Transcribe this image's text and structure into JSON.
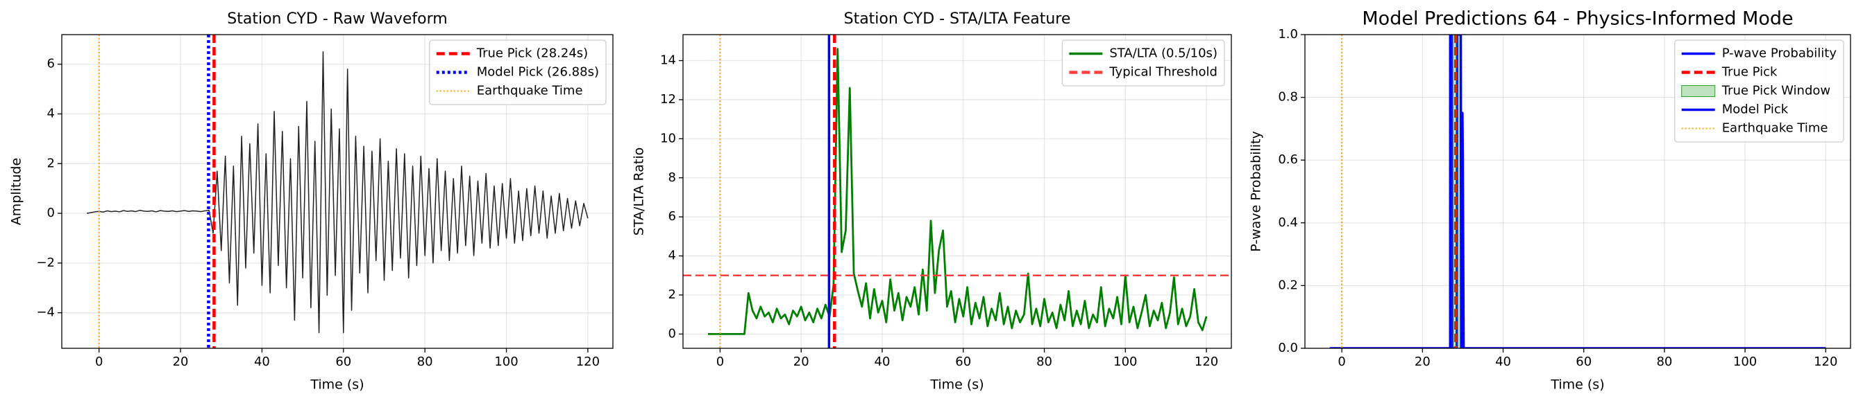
{
  "chart_data": [
    {
      "type": "line",
      "title": "Station CYD - Raw Waveform",
      "xlabel": "Time (s)",
      "ylabel": "Amplitude",
      "xlim": [
        -9.15,
        126.15
      ],
      "ylim": [
        -5.43,
        7.19
      ],
      "xticks": [
        0,
        20,
        40,
        60,
        80,
        100,
        120
      ],
      "yticks": [
        {
          "value": -4,
          "label": "−4"
        },
        {
          "value": -2,
          "label": "−2"
        },
        0,
        2,
        4,
        6
      ],
      "grid": true,
      "legend": "upper right",
      "x": [
        -3,
        -2,
        -1,
        0,
        1,
        2,
        3,
        4,
        5,
        6,
        7,
        8,
        9,
        10,
        11,
        12,
        13,
        14,
        15,
        16,
        17,
        18,
        19,
        20,
        21,
        22,
        23,
        24,
        25,
        26,
        27,
        28,
        29,
        30,
        31,
        32,
        33,
        34,
        35,
        36,
        37,
        38,
        39,
        40,
        41,
        42,
        43,
        44,
        45,
        46,
        47,
        48,
        49,
        50,
        51,
        52,
        53,
        54,
        55,
        56,
        57,
        58,
        59,
        60,
        61,
        62,
        63,
        64,
        65,
        66,
        67,
        68,
        69,
        70,
        71,
        72,
        73,
        74,
        75,
        76,
        77,
        78,
        79,
        80,
        81,
        82,
        83,
        84,
        85,
        86,
        87,
        88,
        89,
        90,
        91,
        92,
        93,
        94,
        95,
        96,
        97,
        98,
        99,
        100,
        101,
        102,
        103,
        104,
        105,
        106,
        107,
        108,
        109,
        110,
        111,
        112,
        113,
        114,
        115,
        116,
        117,
        118,
        119,
        120
      ],
      "series": [
        {
          "kind": "line",
          "color": "#222222",
          "style": "solid",
          "values": [
            0.0,
            0.03,
            0.06,
            0.08,
            0.05,
            0.1,
            0.07,
            0.09,
            0.06,
            0.11,
            0.08,
            0.1,
            0.07,
            0.12,
            0.09,
            0.08,
            0.1,
            0.06,
            0.11,
            0.09,
            0.08,
            0.1,
            0.07,
            0.09,
            0.11,
            0.08,
            0.1,
            0.09,
            0.07,
            0.1,
            0.12,
            -0.8,
            1.7,
            -1.5,
            2.3,
            -2.8,
            1.9,
            -3.7,
            3.1,
            -2.2,
            2.8,
            -1.6,
            3.6,
            -2.9,
            2.4,
            -3.2,
            4.1,
            -2.1,
            3.3,
            -3.0,
            2.2,
            -4.3,
            3.5,
            -2.6,
            4.5,
            -3.8,
            2.9,
            -4.8,
            6.5,
            -3.3,
            4.2,
            -2.5,
            3.4,
            -4.8,
            5.8,
            -3.9,
            3.1,
            -2.4,
            2.7,
            -3.2,
            2.5,
            -1.9,
            3.0,
            -2.7,
            2.1,
            -2.3,
            2.6,
            -1.8,
            2.4,
            -2.6,
            1.9,
            -2.1,
            2.3,
            -1.7,
            1.8,
            -2.0,
            2.2,
            -1.5,
            1.7,
            -1.9,
            1.4,
            -1.6,
            1.9,
            -1.3,
            1.5,
            -1.7,
            1.3,
            -1.2,
            1.6,
            -1.4,
            1.1,
            -1.3,
            1.2,
            -1.0,
            1.4,
            -1.2,
            0.9,
            -1.1,
            1.0,
            -0.9,
            1.1,
            -0.8,
            0.9,
            -1.0,
            0.7,
            -0.8,
            0.8,
            -0.7,
            0.6,
            -0.6,
            0.5,
            -0.5,
            0.4,
            -0.2
          ]
        },
        {
          "kind": "vline",
          "name": "True Pick (28.24s)",
          "x": 28.24,
          "color": "#ff0000",
          "style": "dashed"
        },
        {
          "kind": "vline",
          "name": "Model Pick (26.88s)",
          "x": 26.88,
          "color": "#0000ff",
          "style": "dotted"
        },
        {
          "kind": "vline",
          "name": "Earthquake Time",
          "x": 0,
          "color": "#ffa500",
          "style": "finedot"
        }
      ]
    },
    {
      "type": "line",
      "title": "Station CYD - STA/LTA Feature",
      "xlabel": "Time (s)",
      "ylabel": "STA/LTA Ratio",
      "xlim": [
        -9.15,
        126.15
      ],
      "ylim": [
        -0.73,
        15.33
      ],
      "xticks": [
        0,
        20,
        40,
        60,
        80,
        100,
        120
      ],
      "yticks": [
        0,
        2,
        4,
        6,
        8,
        10,
        12,
        14
      ],
      "grid": true,
      "legend": "upper right",
      "x": [
        -3,
        -2,
        -1,
        0,
        1,
        2,
        3,
        4,
        5,
        6,
        7,
        8,
        9,
        10,
        11,
        12,
        13,
        14,
        15,
        16,
        17,
        18,
        19,
        20,
        21,
        22,
        23,
        24,
        25,
        26,
        27,
        28,
        29,
        30,
        31,
        32,
        33,
        34,
        35,
        36,
        37,
        38,
        39,
        40,
        41,
        42,
        43,
        44,
        45,
        46,
        47,
        48,
        49,
        50,
        51,
        52,
        53,
        54,
        55,
        56,
        57,
        58,
        59,
        60,
        61,
        62,
        63,
        64,
        65,
        66,
        67,
        68,
        69,
        70,
        71,
        72,
        73,
        74,
        75,
        76,
        77,
        78,
        79,
        80,
        81,
        82,
        83,
        84,
        85,
        86,
        87,
        88,
        89,
        90,
        91,
        92,
        93,
        94,
        95,
        96,
        97,
        98,
        99,
        100,
        101,
        102,
        103,
        104,
        105,
        106,
        107,
        108,
        109,
        110,
        111,
        112,
        113,
        114,
        115,
        116,
        117,
        118,
        119,
        120
      ],
      "series": [
        {
          "kind": "line",
          "name": "STA/LTA (0.5/10s)",
          "color": "#008000",
          "style": "solid",
          "values": [
            0,
            0,
            0,
            0,
            0,
            0,
            0,
            0,
            0,
            0,
            2.1,
            1.2,
            0.8,
            1.4,
            0.9,
            1.1,
            0.6,
            1.3,
            0.8,
            1.0,
            0.5,
            1.2,
            0.9,
            1.4,
            0.7,
            1.1,
            0.6,
            1.3,
            0.8,
            1.5,
            0.9,
            2.5,
            14.6,
            4.2,
            5.3,
            12.6,
            3.1,
            2.2,
            1.4,
            2.6,
            0.8,
            2.3,
            1.1,
            1.7,
            0.6,
            2.8,
            1.2,
            2.1,
            0.7,
            1.9,
            1.4,
            2.4,
            1.0,
            3.3,
            1.2,
            5.8,
            2.1,
            4.3,
            5.3,
            1.4,
            2.2,
            0.6,
            1.8,
            0.9,
            2.4,
            0.5,
            1.6,
            0.8,
            1.9,
            0.4,
            1.3,
            0.7,
            2.1,
            0.5,
            1.4,
            0.3,
            1.2,
            0.6,
            1.0,
            3.1,
            0.5,
            1.3,
            0.4,
            1.8,
            0.6,
            1.1,
            0.3,
            1.5,
            0.7,
            2.2,
            0.4,
            1.2,
            0.5,
            1.7,
            0.3,
            1.0,
            0.6,
            2.4,
            0.4,
            1.3,
            0.8,
            1.9,
            0.5,
            3.0,
            0.6,
            1.4,
            0.3,
            1.1,
            2.0,
            0.4,
            1.2,
            0.7,
            1.6,
            0.3,
            1.1,
            2.9,
            0.5,
            1.3,
            0.4,
            0.9,
            2.3,
            0.6,
            0.2,
            0.9
          ]
        },
        {
          "kind": "hline",
          "name": "Typical Threshold",
          "y": 3,
          "color": "#ff4040",
          "style": "dashed"
        },
        {
          "kind": "vline",
          "x": 0,
          "color": "#ffa500",
          "style": "finedot"
        },
        {
          "kind": "vline",
          "x": 26.88,
          "color": "#0000ff",
          "style": "solid"
        },
        {
          "kind": "vline",
          "x": 28.24,
          "color": "#ff0000",
          "style": "dashed"
        }
      ]
    },
    {
      "type": "line",
      "title": "Model Predictions 64 - Physics-Informed Mode",
      "xlabel": "Time (s)",
      "ylabel": "P-wave Probability",
      "xlim": [
        -9.15,
        126.15
      ],
      "ylim": [
        0,
        1
      ],
      "xticks": [
        0,
        20,
        40,
        60,
        80,
        100,
        120
      ],
      "yticks": [
        {
          "value": 0,
          "label": "0.0"
        },
        0.2,
        0.4,
        0.6,
        0.8,
        {
          "value": 1,
          "label": "1.0"
        }
      ],
      "grid": true,
      "legend": "upper right",
      "series": [
        {
          "kind": "line",
          "name": "P-wave Probability",
          "color": "#0000ff",
          "style": "solid",
          "x": [
            -3,
            26.9,
            27.0,
            27.3,
            27.4,
            28.5,
            28.6,
            29.5,
            29.6,
            29.8,
            29.9,
            30.0,
            30.2,
            120
          ],
          "values": [
            0,
            0,
            1,
            1,
            0,
            0,
            1,
            1,
            0,
            0.75,
            0.75,
            0.6,
            0,
            0
          ]
        },
        {
          "kind": "vline",
          "name": "True Pick",
          "x": 28.24,
          "color": "#ff0000",
          "style": "dashed"
        },
        {
          "kind": "span",
          "name": "True Pick Window",
          "x": [
            27.24,
            29.24
          ],
          "color": "#2ca02c"
        },
        {
          "kind": "vline",
          "name": "Model Pick",
          "x": 26.88,
          "color": "#0000ff",
          "style": "solid"
        },
        {
          "kind": "vline",
          "name": "Earthquake Time",
          "x": 0,
          "color": "#ffa500",
          "style": "finedot"
        }
      ]
    }
  ]
}
